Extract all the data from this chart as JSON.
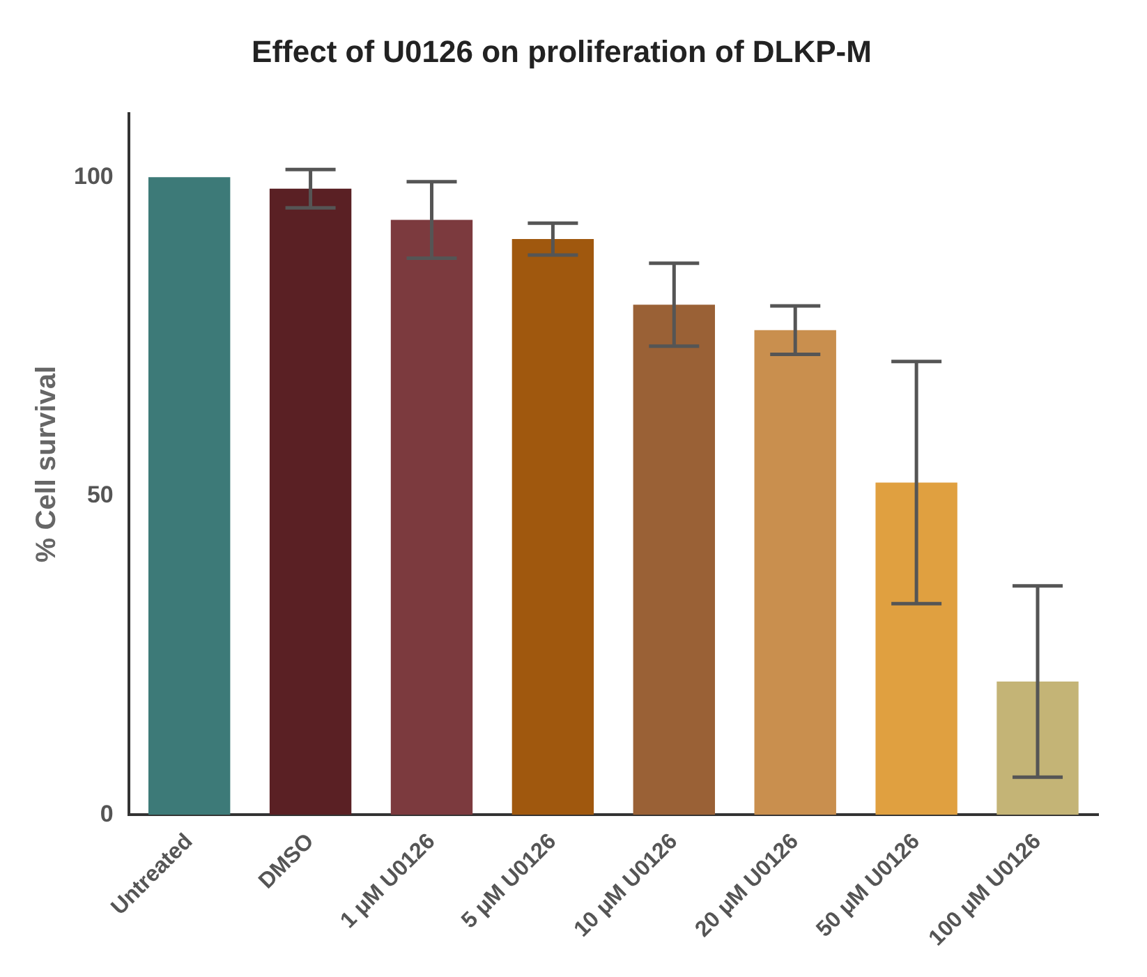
{
  "chart_data": {
    "type": "bar",
    "title": "Effect of U0126 on proliferation of DLKP-M",
    "ylabel": "% Cell survival",
    "categories": [
      "Untreated",
      "DMSO",
      "1 μM U0126",
      "5 μM U0126",
      "10 μM U0126",
      "20 μM U0126",
      "50 μM U0126",
      "100 μM U0126"
    ],
    "values": [
      100,
      98.2,
      93.3,
      90.3,
      80,
      76,
      52.1,
      20.9
    ],
    "errors": [
      null,
      3,
      6,
      2.5,
      6.5,
      3.8,
      19,
      15
    ],
    "colors": [
      "#3d7a78",
      "#5a2024",
      "#7c3a3e",
      "#a0580e",
      "#9a6136",
      "#c98f4e",
      "#e0a040",
      "#c4b476"
    ],
    "ylim": [
      0,
      110
    ],
    "yticks": [
      0,
      50,
      100
    ],
    "grid": false,
    "legend": false
  }
}
